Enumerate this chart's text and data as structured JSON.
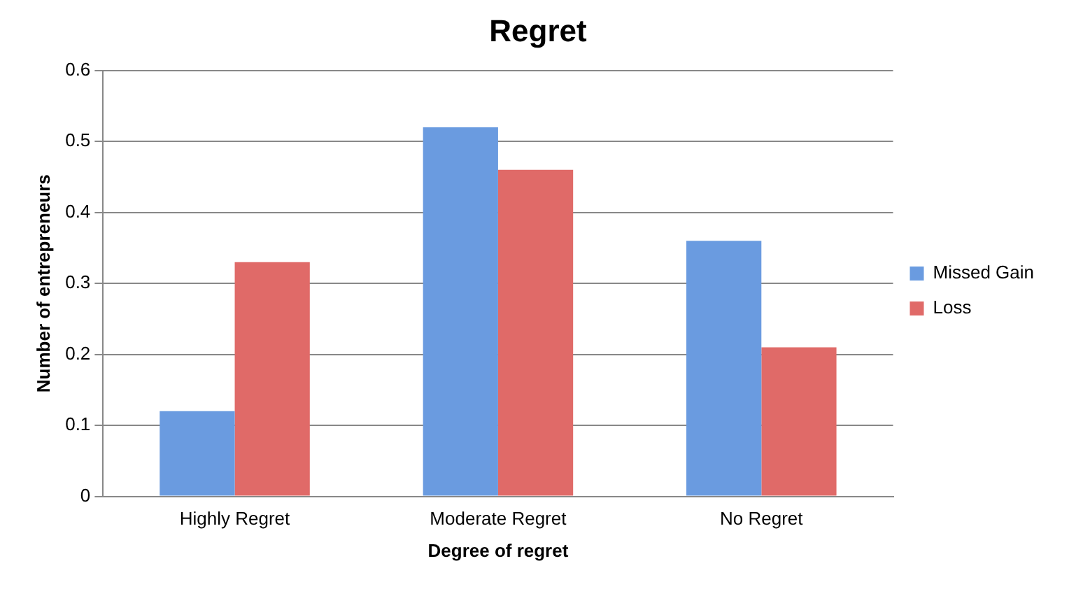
{
  "chart_data": {
    "type": "bar",
    "title": "Regret",
    "xlabel": "Degree of regret",
    "ylabel": "Number of entrepreneurs",
    "categories": [
      "Highly Regret",
      "Moderate Regret",
      "No Regret"
    ],
    "series": [
      {
        "name": "Missed Gain",
        "color": "#6a9be0",
        "values": [
          0.12,
          0.52,
          0.36
        ]
      },
      {
        "name": "Loss",
        "color": "#e06a68",
        "values": [
          0.33,
          0.46,
          0.21
        ]
      }
    ],
    "ylim": [
      0,
      0.6
    ],
    "yticks": [
      0,
      0.1,
      0.2,
      0.3,
      0.4,
      0.5,
      0.6
    ],
    "grid": "y",
    "legend": "right"
  }
}
